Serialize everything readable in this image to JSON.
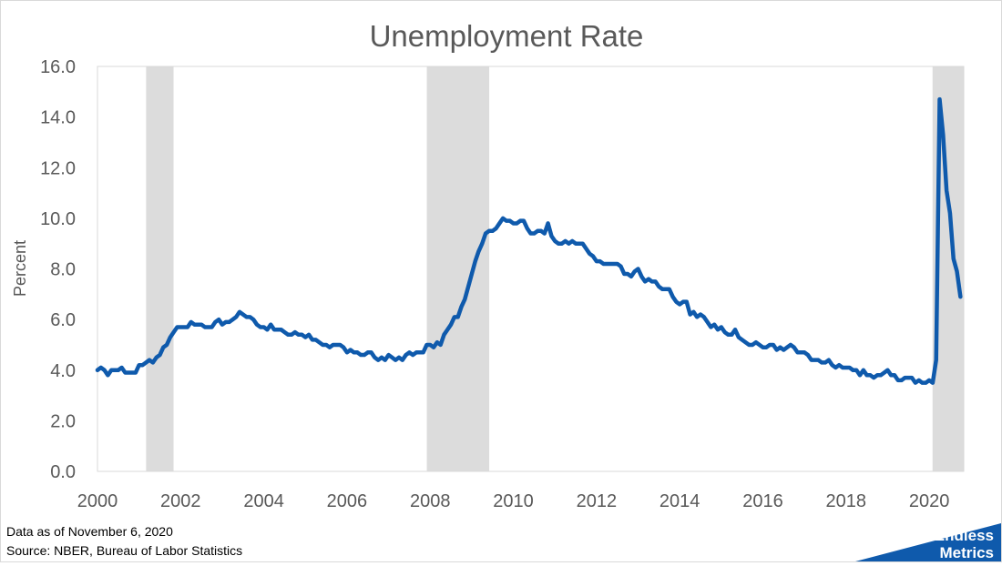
{
  "footnotes": {
    "data_as_of": "Data as of November 6, 2020",
    "source": "Source: NBER, Bureau of Labor Statistics"
  },
  "logo": {
    "line1": "Endless",
    "line2": "Metrics"
  },
  "colors": {
    "line": "#0f5aac",
    "recession": "#dcdcdc",
    "logo": "#0f5aac",
    "text": "#595959"
  },
  "chart_data": {
    "type": "line",
    "title": "Unemployment Rate",
    "xlabel": "",
    "ylabel": "Percent",
    "xlim": [
      2000,
      2020.83
    ],
    "ylim": [
      0,
      16
    ],
    "x_ticks": [
      2000,
      2002,
      2004,
      2006,
      2008,
      2010,
      2012,
      2014,
      2016,
      2018,
      2020
    ],
    "y_ticks": [
      "0.0",
      "2.0",
      "4.0",
      "6.0",
      "8.0",
      "10.0",
      "12.0",
      "14.0",
      "16.0"
    ],
    "grid": false,
    "legend": "none",
    "recessions": [
      [
        2001.17,
        2001.83
      ],
      [
        2007.92,
        2009.42
      ],
      [
        2020.08,
        2020.83
      ]
    ],
    "series": [
      {
        "start": "2000-01",
        "frequency": "monthly",
        "values": [
          4.0,
          4.1,
          4.0,
          3.8,
          4.0,
          4.0,
          4.0,
          4.1,
          3.9,
          3.9,
          3.9,
          3.9,
          4.2,
          4.2,
          4.3,
          4.4,
          4.3,
          4.5,
          4.6,
          4.9,
          5.0,
          5.3,
          5.5,
          5.7,
          5.7,
          5.7,
          5.7,
          5.9,
          5.8,
          5.8,
          5.8,
          5.7,
          5.7,
          5.7,
          5.9,
          6.0,
          5.8,
          5.9,
          5.9,
          6.0,
          6.1,
          6.3,
          6.2,
          6.1,
          6.1,
          6.0,
          5.8,
          5.7,
          5.7,
          5.6,
          5.8,
          5.6,
          5.6,
          5.6,
          5.5,
          5.4,
          5.4,
          5.5,
          5.4,
          5.4,
          5.3,
          5.4,
          5.2,
          5.2,
          5.1,
          5.0,
          5.0,
          4.9,
          5.0,
          5.0,
          5.0,
          4.9,
          4.7,
          4.8,
          4.7,
          4.7,
          4.6,
          4.6,
          4.7,
          4.7,
          4.5,
          4.4,
          4.5,
          4.4,
          4.6,
          4.5,
          4.4,
          4.5,
          4.4,
          4.6,
          4.7,
          4.6,
          4.7,
          4.7,
          4.7,
          5.0,
          5.0,
          4.9,
          5.1,
          5.0,
          5.4,
          5.6,
          5.8,
          6.1,
          6.1,
          6.5,
          6.8,
          7.3,
          7.8,
          8.3,
          8.7,
          9.0,
          9.4,
          9.5,
          9.5,
          9.6,
          9.8,
          10.0,
          9.9,
          9.9,
          9.8,
          9.8,
          9.9,
          9.9,
          9.6,
          9.4,
          9.4,
          9.5,
          9.5,
          9.4,
          9.8,
          9.3,
          9.1,
          9.0,
          9.0,
          9.1,
          9.0,
          9.1,
          9.0,
          9.0,
          9.0,
          8.8,
          8.6,
          8.5,
          8.3,
          8.3,
          8.2,
          8.2,
          8.2,
          8.2,
          8.2,
          8.1,
          7.8,
          7.8,
          7.7,
          7.9,
          8.0,
          7.7,
          7.5,
          7.6,
          7.5,
          7.5,
          7.3,
          7.2,
          7.2,
          7.2,
          6.9,
          6.7,
          6.6,
          6.7,
          6.7,
          6.2,
          6.3,
          6.1,
          6.2,
          6.1,
          5.9,
          5.7,
          5.8,
          5.6,
          5.7,
          5.5,
          5.4,
          5.4,
          5.6,
          5.3,
          5.2,
          5.1,
          5.0,
          5.0,
          5.1,
          5.0,
          4.9,
          4.9,
          5.0,
          5.0,
          4.8,
          4.9,
          4.8,
          4.9,
          5.0,
          4.9,
          4.7,
          4.7,
          4.7,
          4.6,
          4.4,
          4.4,
          4.4,
          4.3,
          4.3,
          4.4,
          4.2,
          4.1,
          4.2,
          4.1,
          4.1,
          4.1,
          4.0,
          4.0,
          3.8,
          4.0,
          3.8,
          3.8,
          3.7,
          3.8,
          3.8,
          3.9,
          4.0,
          3.8,
          3.8,
          3.6,
          3.6,
          3.7,
          3.7,
          3.7,
          3.5,
          3.6,
          3.5,
          3.5,
          3.6,
          3.5,
          4.4,
          14.7,
          13.3,
          11.1,
          10.2,
          8.4,
          7.9,
          6.9
        ]
      }
    ]
  }
}
